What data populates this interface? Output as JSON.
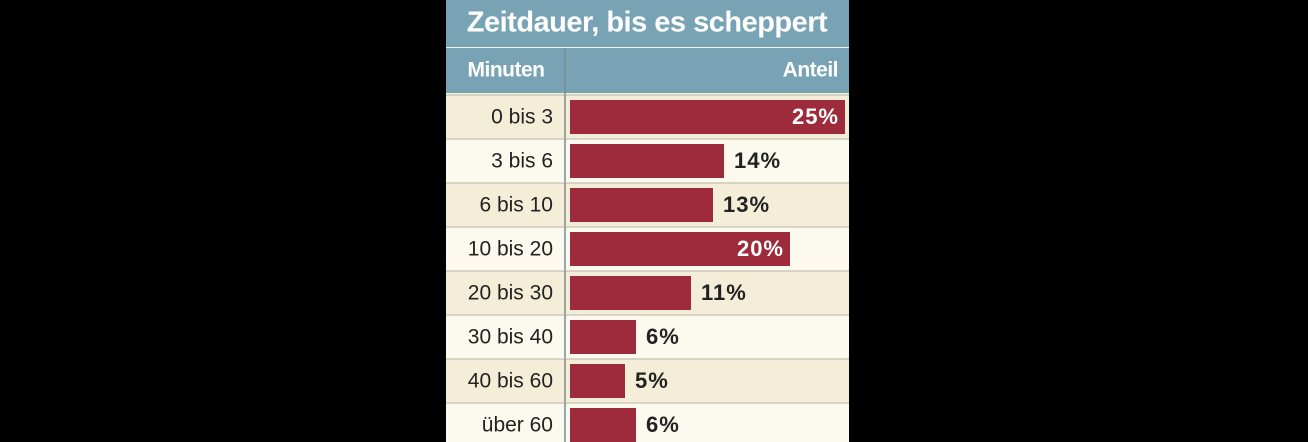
{
  "chart_data": {
    "type": "bar",
    "title": "Zeitdauer, bis es scheppert",
    "column_headers": [
      "Minuten",
      "Anteil"
    ],
    "categories": [
      "0 bis 3",
      "3 bis 6",
      "6 bis 10",
      "10 bis 20",
      "20 bis 30",
      "30 bis 40",
      "40 bis 60",
      "über 60"
    ],
    "values": [
      25,
      14,
      13,
      20,
      11,
      6,
      5,
      6
    ],
    "value_labels": [
      "25%",
      "14%",
      "13%",
      "20%",
      "11%",
      "6%",
      "5%",
      "6%"
    ],
    "color": "#9e2b3b"
  }
}
